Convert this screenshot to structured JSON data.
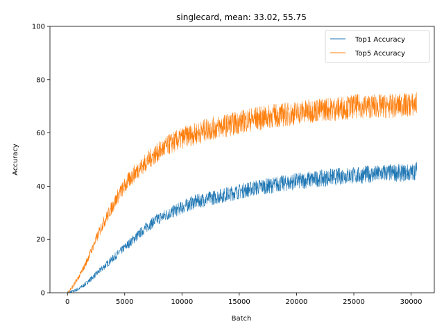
{
  "chart_data": {
    "type": "line",
    "title": "singlecard, mean: 33.02, 55.75",
    "xlabel": "Batch",
    "ylabel": "Accuracy",
    "xlim": [
      -1525,
      32025
    ],
    "ylim": [
      0,
      100
    ],
    "xticks": [
      0,
      5000,
      10000,
      15000,
      20000,
      25000,
      30000
    ],
    "yticks": [
      0,
      20,
      40,
      60,
      80,
      100
    ],
    "grid": false,
    "legend_position": "upper-right",
    "series": [
      {
        "name": "Top1 Accuracy",
        "color": "#1f77b4",
        "x": [
          0,
          500,
          1000,
          1500,
          2000,
          2500,
          3000,
          3500,
          4000,
          4500,
          5000,
          5500,
          6000,
          6500,
          7000,
          7500,
          8000,
          8500,
          9000,
          9500,
          10000,
          10500,
          11000,
          11500,
          12000,
          12500,
          13000,
          13500,
          14000,
          14500,
          15000,
          15500,
          16000,
          16500,
          17000,
          17500,
          18000,
          18500,
          19000,
          19500,
          20000,
          20500,
          21000,
          21500,
          22000,
          22500,
          23000,
          23500,
          24000,
          24500,
          25000,
          25500,
          26000,
          26500,
          27000,
          27500,
          28000,
          28500,
          29000,
          29500,
          30000,
          30500
        ],
        "values": [
          0,
          0.5,
          1.5,
          3,
          5,
          7,
          9,
          11,
          13,
          15,
          17,
          19,
          21,
          23,
          25,
          26.5,
          28,
          29,
          30,
          31,
          32,
          33,
          34,
          34.5,
          35,
          35.5,
          36,
          36.5,
          37,
          37.5,
          38,
          38.5,
          39,
          39.5,
          40,
          40,
          40.5,
          41,
          41,
          41.5,
          42,
          42,
          42.5,
          42.5,
          43,
          43,
          43.5,
          43.5,
          44,
          44,
          44,
          44,
          44.5,
          44.5,
          44.5,
          45,
          45,
          45,
          45,
          45,
          45,
          46
        ]
      },
      {
        "name": "Top5 Accuracy",
        "color": "#ff7f0e",
        "x": [
          0,
          500,
          1000,
          1500,
          2000,
          2500,
          3000,
          3500,
          4000,
          4500,
          5000,
          5500,
          6000,
          6500,
          7000,
          7500,
          8000,
          8500,
          9000,
          9500,
          10000,
          10500,
          11000,
          11500,
          12000,
          12500,
          13000,
          13500,
          14000,
          14500,
          15000,
          15500,
          16000,
          16500,
          17000,
          17500,
          18000,
          18500,
          19000,
          19500,
          20000,
          20500,
          21000,
          21500,
          22000,
          22500,
          23000,
          23500,
          24000,
          24500,
          25000,
          25500,
          26000,
          26500,
          27000,
          27500,
          28000,
          28500,
          29000,
          29500,
          30000,
          30500
        ],
        "values": [
          0,
          2.5,
          6,
          10,
          15,
          20,
          25,
          29,
          33,
          37,
          40,
          43,
          45.5,
          47.5,
          49.5,
          51.5,
          53,
          54.5,
          56,
          57,
          58,
          59,
          59.5,
          60,
          61,
          61.5,
          62,
          62.5,
          63,
          63.5,
          64,
          64.5,
          65,
          65.5,
          65.5,
          66,
          66.5,
          66.5,
          67,
          67,
          67.5,
          68,
          68,
          68.5,
          68.5,
          69,
          69,
          69,
          69.5,
          69.5,
          70,
          70,
          70,
          70,
          70,
          70,
          70,
          70,
          70.5,
          70.5,
          70.5,
          71
        ]
      }
    ]
  }
}
